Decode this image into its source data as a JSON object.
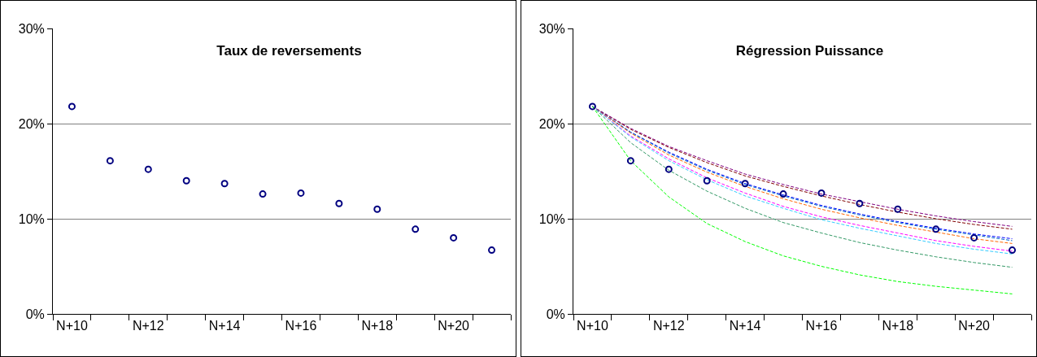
{
  "chart_data": [
    {
      "type": "scatter",
      "title": "Taux de reversements",
      "categories": [
        "N+10",
        null,
        "N+12",
        null,
        "N+14",
        null,
        "N+16",
        null,
        "N+18",
        null,
        "N+20",
        null
      ],
      "series": [
        {
          "type": "scatter",
          "color": "#000080",
          "marker": "circle",
          "values": [
            21.8,
            16.1,
            15.2,
            14.0,
            13.7,
            12.6,
            12.7,
            11.6,
            11.0,
            8.9,
            8.0,
            6.7
          ]
        }
      ],
      "ylim": [
        0,
        30
      ],
      "yticks": [
        {
          "value": 0,
          "label": "0%"
        },
        {
          "value": 10,
          "label": "10%"
        },
        {
          "value": 20,
          "label": "20%"
        },
        {
          "value": 30,
          "label": "30%"
        }
      ],
      "grid": "y"
    },
    {
      "type": "scatter",
      "title": "Régression Puissance",
      "categories": [
        "N+10",
        null,
        "N+12",
        null,
        "N+14",
        null,
        "N+16",
        null,
        "N+18",
        null,
        "N+20",
        null
      ],
      "series": [
        {
          "type": "line",
          "color": "#800000",
          "line_style": "dashed",
          "marker": "none",
          "values": [
            21.8,
            19.4,
            17.5,
            15.9,
            14.5,
            13.4,
            12.4,
            11.5,
            10.7,
            10.0,
            9.4,
            8.9
          ]
        },
        {
          "type": "line",
          "color": "#800080",
          "line_style": "dashed",
          "marker": "none",
          "values": [
            21.8,
            19.5,
            17.6,
            16.1,
            14.7,
            13.6,
            12.6,
            11.8,
            11.0,
            10.3,
            9.7,
            9.2
          ]
        },
        {
          "type": "line",
          "color": "#0000ff",
          "line_style": "dashed",
          "marker": "none",
          "values": [
            21.8,
            19.1,
            17.0,
            15.2,
            13.7,
            12.5,
            11.4,
            10.5,
            9.7,
            9.0,
            8.4,
            7.9
          ]
        },
        {
          "type": "line",
          "color": "#0066cc",
          "line_style": "dashed",
          "marker": "none",
          "values": [
            21.8,
            19.1,
            16.9,
            15.1,
            13.6,
            12.4,
            11.3,
            10.4,
            9.6,
            8.9,
            8.3,
            7.7
          ]
        },
        {
          "type": "line",
          "color": "#ff6600",
          "line_style": "dashed",
          "marker": "none",
          "values": [
            21.8,
            19.0,
            16.7,
            14.9,
            13.4,
            12.1,
            11.0,
            10.1,
            9.3,
            8.6,
            7.9,
            7.4
          ]
        },
        {
          "type": "line",
          "color": "#ff00ff",
          "line_style": "dashed",
          "marker": "none",
          "values": [
            21.8,
            18.7,
            16.3,
            14.3,
            12.7,
            11.3,
            10.2,
            9.3,
            8.5,
            7.7,
            7.1,
            6.6
          ]
        },
        {
          "type": "line",
          "color": "#33ccff",
          "line_style": "dashed",
          "marker": "none",
          "values": [
            21.8,
            18.6,
            16.1,
            14.1,
            12.4,
            11.1,
            9.9,
            9.0,
            8.2,
            7.4,
            6.8,
            6.3
          ]
        },
        {
          "type": "line",
          "color": "#339966",
          "line_style": "dashed",
          "marker": "none",
          "values": [
            21.8,
            18.0,
            15.1,
            12.9,
            11.1,
            9.6,
            8.5,
            7.5,
            6.7,
            6.0,
            5.4,
            4.9
          ]
        },
        {
          "type": "line",
          "color": "#00ff00",
          "line_style": "dashed",
          "marker": "none",
          "values": [
            21.8,
            16.1,
            12.3,
            9.5,
            7.6,
            6.1,
            5.0,
            4.1,
            3.4,
            2.9,
            2.5,
            2.1
          ]
        },
        {
          "type": "scatter",
          "color": "#000080",
          "marker": "circle",
          "values": [
            21.8,
            16.1,
            15.2,
            14.0,
            13.7,
            12.6,
            12.7,
            11.6,
            11.0,
            8.9,
            8.0,
            6.7
          ]
        }
      ],
      "ylim": [
        0,
        30
      ],
      "yticks": [
        {
          "value": 0,
          "label": "0%"
        },
        {
          "value": 10,
          "label": "10%"
        },
        {
          "value": 20,
          "label": "20%"
        },
        {
          "value": 30,
          "label": "30%"
        }
      ],
      "grid": "y"
    }
  ]
}
